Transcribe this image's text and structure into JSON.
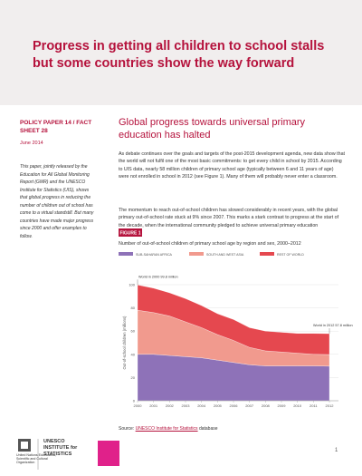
{
  "header": {
    "title": "Progress in getting all children to school stalls but some countries show the way forward"
  },
  "sidebar": {
    "series": "POLICY PAPER 14 / FACT SHEET 28",
    "date": "June 2014",
    "summary": "This paper, jointly released by the Education for All Global Monitoring Report (GMR) and the UNESCO Institute for Statistics (UIS), shows that global progress in reducing the number of children out of school has come to a virtual standstill. But many countries have made major progress since 2000 and offer examples to follow."
  },
  "main": {
    "heading": "Global progress towards universal primary education has halted",
    "paragraphs": [
      "As debate continues over the goals and targets of the post-2015 development agenda, new data show that the world will not fulfil one of the most basic commitments: to get every child in school by 2015. According to UIS data, nearly 58 million children of primary school age (typically between 6 and 11 years of age) were not enrolled in school in 2012 (see Figure 1). Many of them will probably never enter a classroom.",
      "The momentum to reach out-of-school children has slowed considerably in recent years, with the global primary out-of-school rate stuck at 9% since 2007. This marks a stark contrast to progress at the start of the decade, when the international community pledged to achieve universal primary education"
    ]
  },
  "figure": {
    "label": "FIGURE 1",
    "caption": "Number of out-of-school children of primary school age by region and sex, 2000–2012",
    "source_prefix": "Source:",
    "source_link": "UNESCO Institute for Statistics",
    "source_suffix": "database"
  },
  "footer": {
    "unesco": "United Nations Educational, Scientific and Cultural Organization",
    "uis": "UNESCO INSTITUTE for STATISTICS",
    "page_number": "1"
  },
  "chart_data": {
    "type": "stacked-area",
    "y_label": "Out-of-school children (millions)",
    "x": [
      2000,
      2001,
      2002,
      2003,
      2004,
      2005,
      2006,
      2007,
      2008,
      2009,
      2010,
      2011,
      2012
    ],
    "xlim": [
      2000,
      2012
    ],
    "xticks": [
      2000,
      2001,
      2002,
      2003,
      2004,
      2005,
      2006,
      2007,
      2008,
      2009,
      2010,
      2011,
      2012
    ],
    "ylim": [
      0,
      100
    ],
    "yticks": [
      0,
      20,
      40,
      60,
      80,
      100
    ],
    "series": [
      {
        "name": "SUB-SAHARAN AFRICA",
        "color": "#8e72b8",
        "values": [
          40,
          40,
          39,
          38,
          37,
          35,
          33,
          31,
          30,
          30,
          30,
          30,
          29.8
        ]
      },
      {
        "name": "SOUTH AND WEST ASIA",
        "color": "#f19a8e",
        "values": [
          38,
          36,
          34,
          30,
          26,
          22,
          19,
          15,
          13,
          12,
          11,
          10,
          10
        ]
      },
      {
        "name": "REST OF WORLD",
        "color": "#e5484f",
        "values": [
          21.8,
          21,
          20,
          20,
          19,
          18,
          18,
          17,
          17,
          17,
          17,
          18,
          18
        ]
      }
    ],
    "annotations": [
      {
        "x": 2000,
        "y": 99.8,
        "text": "World in 2000 99.8 million"
      },
      {
        "x": 2012,
        "y": 57.8,
        "text": "World in 2012 57.8 million"
      }
    ]
  }
}
